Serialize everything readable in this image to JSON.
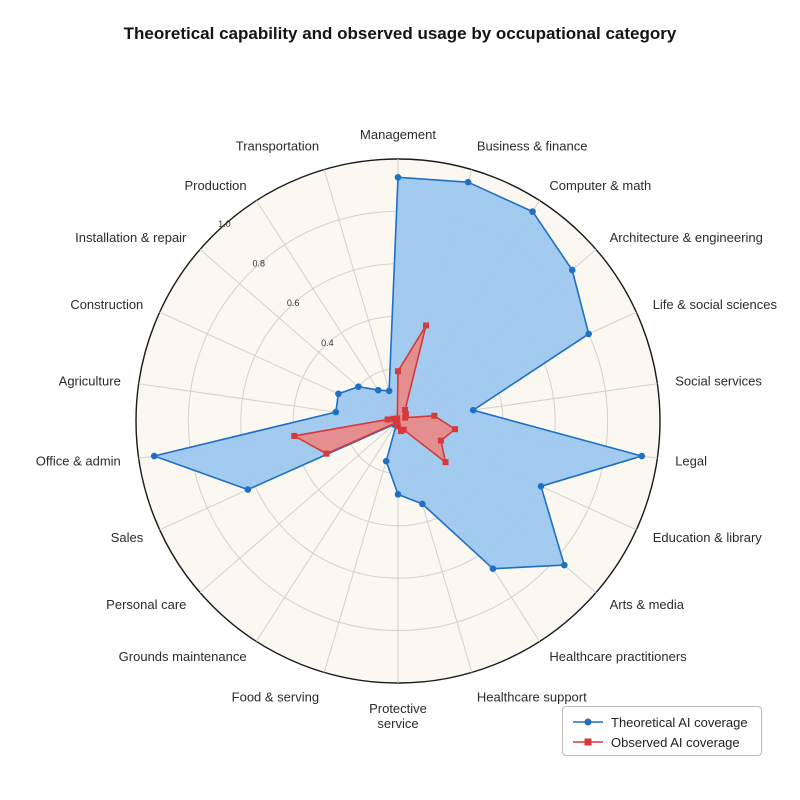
{
  "title": "Theoretical capability and observed usage by occupational category",
  "chart_data": {
    "type": "radar",
    "title": "Theoretical capability and observed usage by occupational category",
    "categories": [
      "Management",
      "Business & finance",
      "Computer & math",
      "Architecture & engineering",
      "Life & social sciences",
      "Social services",
      "Legal",
      "Education & library",
      "Arts & media",
      "Healthcare practitioners",
      "Healthcare support",
      "Protective service",
      "Food & serving",
      "Grounds maintenance",
      "Personal care",
      "Sales",
      "Office & admin",
      "Agriculture",
      "Construction",
      "Installation & repair",
      "Production",
      "Transportation"
    ],
    "category_display": [
      "Management",
      "Business & finance",
      "Computer & math",
      "Architecture & engineering",
      "Life & social sciences",
      "Social services",
      "Legal",
      "Education & library",
      "Arts & media",
      "Healthcare practitioners",
      "Healthcare support",
      "Protective\nservice",
      "Food & serving",
      "Grounds maintenance",
      "Personal care",
      "Sales",
      "Office & admin",
      "Agriculture",
      "Construction",
      "Installation & repair",
      "Production",
      "Transportation"
    ],
    "rlim": [
      0,
      1.0
    ],
    "rticks": [
      0.4,
      0.6,
      0.8,
      1.0
    ],
    "series": [
      {
        "name": "Theoretical AI coverage",
        "color": "#1f6fc4",
        "fill": "#9ec8ef",
        "marker": "circle",
        "values": [
          0.93,
          0.95,
          0.95,
          0.88,
          0.8,
          0.29,
          0.94,
          0.6,
          0.84,
          0.67,
          0.33,
          0.28,
          0.16,
          0.01,
          0.02,
          0.63,
          0.94,
          0.24,
          0.25,
          0.2,
          0.14,
          0.12
        ]
      },
      {
        "name": "Observed AI coverage",
        "color": "#d63a3a",
        "fill": "#e98a8a",
        "marker": "square",
        "values": [
          0.19,
          0.38,
          0.05,
          0.04,
          0.03,
          0.14,
          0.22,
          0.18,
          0.24,
          0.04,
          0.04,
          0.02,
          0.01,
          0.01,
          0.01,
          0.3,
          0.4,
          0.04,
          0.02,
          0.01,
          0.01,
          0.01
        ]
      }
    ],
    "grid": true,
    "legend_position": "bottom-right",
    "background": "#faf8f1"
  }
}
